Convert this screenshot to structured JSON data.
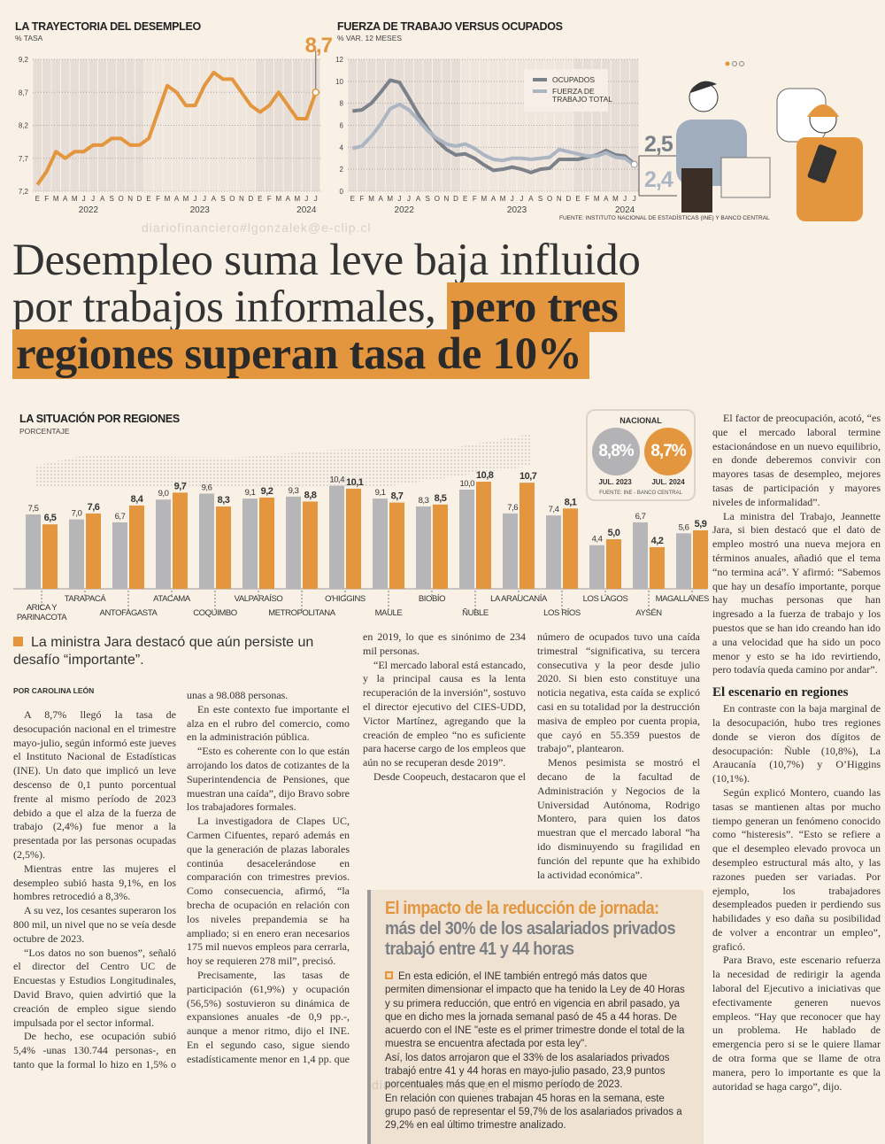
{
  "watermark": "diariofinanciero#lgonzalek@e-clip.cl",
  "chart_data": [
    {
      "type": "line",
      "title": "LA TRAYECTORIA DEL DESEMPLEO",
      "subtitle": "% TASA",
      "ylim": [
        7.2,
        9.2
      ],
      "yticks": [
        "7,2",
        "7,7",
        "8,2",
        "8,7",
        "9,2"
      ],
      "months": [
        "E",
        "F",
        "M",
        "A",
        "M",
        "J",
        "J",
        "A",
        "S",
        "O",
        "N",
        "D",
        "E",
        "F",
        "M",
        "A",
        "M",
        "J",
        "J",
        "A",
        "S",
        "O",
        "N",
        "D",
        "E",
        "F",
        "M",
        "A",
        "M",
        "J",
        "J"
      ],
      "years": [
        "2022",
        "2023",
        "2024"
      ],
      "series": [
        {
          "name": "Tasa de desocupación",
          "values": [
            7.3,
            7.5,
            7.8,
            7.7,
            7.8,
            7.8,
            7.9,
            7.9,
            8.0,
            8.0,
            7.9,
            7.9,
            8.0,
            8.4,
            8.8,
            8.7,
            8.5,
            8.5,
            8.8,
            9.0,
            8.9,
            8.9,
            8.7,
            8.5,
            8.4,
            8.5,
            8.7,
            8.5,
            8.3,
            8.3,
            8.7
          ]
        }
      ],
      "callout": "8,7",
      "color": "#e3963e"
    },
    {
      "type": "line",
      "title": "FUERZA DE TRABAJO VERSUS OCUPADOS",
      "subtitle": "% VAR. 12 MESES",
      "ylim": [
        0,
        12
      ],
      "yticks": [
        "0",
        "2",
        "4",
        "6",
        "8",
        "10",
        "12"
      ],
      "months": [
        "E",
        "F",
        "M",
        "A",
        "M",
        "J",
        "J",
        "A",
        "S",
        "O",
        "N",
        "D",
        "E",
        "F",
        "M",
        "A",
        "M",
        "J",
        "J",
        "A",
        "S",
        "O",
        "N",
        "D",
        "E",
        "F",
        "M",
        "A",
        "M",
        "J",
        "J"
      ],
      "years": [
        "2022",
        "2023",
        "2024"
      ],
      "series": [
        {
          "name": "OCUPADOS",
          "color": "#7b8189",
          "values": [
            7.3,
            7.4,
            8.0,
            9.0,
            10.1,
            9.9,
            8.5,
            7.0,
            5.7,
            4.6,
            3.8,
            3.3,
            3.4,
            3.0,
            2.4,
            1.9,
            2.0,
            2.2,
            2.0,
            1.7,
            2.0,
            2.1,
            2.9,
            2.9,
            2.9,
            3.1,
            3.3,
            3.7,
            3.3,
            3.2,
            2.5
          ],
          "end_label": "2,5"
        },
        {
          "name": "FUERZA DE TRABAJO TOTAL",
          "color": "#abb6c2",
          "values": [
            3.9,
            4.1,
            5.0,
            6.1,
            7.5,
            7.9,
            7.4,
            6.5,
            5.5,
            4.8,
            4.3,
            4.1,
            4.3,
            3.9,
            3.3,
            2.9,
            2.8,
            3.0,
            3.0,
            2.9,
            3.0,
            3.1,
            3.8,
            3.6,
            3.4,
            3.2,
            3.2,
            3.5,
            3.1,
            3.0,
            2.4
          ],
          "end_label": "2,4"
        }
      ],
      "source": "FUENTE: INSTITUTO NACIONAL DE ESTADÍSTICAS (INE) Y BANCO CENTRAL"
    },
    {
      "type": "bar",
      "title": "LA SITUACIÓN POR REGIONES",
      "subtitle": "PORCENTAJE",
      "categories": [
        "ARICA Y PARINACOTA",
        "TARAPACÁ",
        "ANTOFAGASTA",
        "ATACAMA",
        "COQUIMBO",
        "VALPARAÍSO",
        "METROPOLITANA",
        "O'HIGGINS",
        "MAULE",
        "BIOBÍO",
        "ÑUBLE",
        "LA ARAUCANÍA",
        "LOS RÍOS",
        "LOS LAGOS",
        "AYSÉN",
        "MAGALLANES"
      ],
      "series": [
        {
          "name": "JUL. 2023",
          "color": "#b6b6b8",
          "values": [
            7.5,
            7.0,
            6.7,
            9.0,
            9.6,
            9.1,
            9.3,
            10.4,
            9.1,
            8.3,
            10.0,
            7.6,
            7.4,
            4.4,
            6.7,
            5.6
          ],
          "labels": [
            "7,5",
            "7,0",
            "6,7",
            "9,0",
            "9,6",
            "9,1",
            "9,3",
            "10,4",
            "9,1",
            "8,3",
            "10,0",
            "7,6",
            "7,4",
            "4,4",
            "6,7",
            "5,6"
          ]
        },
        {
          "name": "JUL. 2024",
          "color": "#e3963e",
          "values": [
            6.5,
            7.6,
            8.4,
            9.7,
            8.3,
            9.2,
            8.8,
            10.1,
            8.7,
            8.5,
            10.8,
            10.7,
            8.1,
            5.0,
            4.2,
            5.9
          ],
          "labels": [
            "6,5",
            "7,6",
            "8,4",
            "9,7",
            "8,3",
            "9,2",
            "8,8",
            "10,1",
            "8,7",
            "8,5",
            "10,8",
            "10,7",
            "8,1",
            "5,0",
            "4,2",
            "5,9"
          ]
        }
      ],
      "national": {
        "title": "NACIONAL",
        "v2023": "8,8%",
        "l2023": "JUL. 2023",
        "v2024": "8,7%",
        "l2024": "JUL. 2024",
        "source": "FUENTE: INE - BANCO CENTRAL"
      }
    }
  ],
  "headline": {
    "plain": "Desempleo suma leve baja influido por trabajos informales, ",
    "highlight": "pero tres regiones superan tasa de 10%"
  },
  "pullquote": "La ministra Jara destacó que aún persiste un desafío “importante”.",
  "byline": "POR CAROLINA LEÓN",
  "body_main": [
    "A 8,7% llegó la tasa de desocupación nacional en el trimestre mayo-julio, según informó este jueves el Instituto Nacional de Estadísticas (INE). Un dato que implicó un leve descenso de 0,1 punto porcentual frente al mismo período de 2023 debido a que el alza de la fuerza de trabajo (2,4%) fue menor a la presentada por las personas ocupadas (2,5%).",
    "Mientras entre las mujeres el desempleo subió hasta 9,1%, en los hombres retrocedió a 8,3%.",
    "A su vez, los cesantes superaron los 800 mil, un nivel que no se veía desde octubre de 2023.",
    "“Los datos no son buenos”, señaló el director del Centro UC de Encuestas y Estudios Longitudinales, David Bravo, quien advirtió que la creación de empleo sigue siendo impulsada por el sector informal.",
    "De hecho, ese ocupación subió 5,4% -unas 130.744 personas-, en tanto que la formal lo hizo en 1,5% o unas a 98.088 personas.",
    "En este contexto fue importante el alza en el rubro del comercio, como en la administración pública.",
    "“Esto es coherente con lo que están arrojando los datos de cotizantes de la Superintendencia de Pensiones, que muestran una caída”, dijo Bravo sobre los trabajadores formales.",
    "La investigadora de Clapes UC, Carmen Cifuentes, reparó además en que la generación de plazas laborales continúa desacelerándose en comparación con trimestres previos. Como consecuencia, afirmó, “la brecha de ocupación en relación con los niveles prepandemia se ha ampliado; si en enero eran necesarios 175 mil nuevos empleos para cerrarla, hoy se requieren 278 mil”, precisó.",
    "Precisamente, las tasas de participación (61,9%) y ocupación (56,5%) sostuvieron su dinámica de expansiones anuales -de 0,9 pp.-, aunque a menor ritmo, dijo el INE. En el segundo caso, sigue siendo estadísticamente menor en 1,4 pp. que en 2019, lo que es sinónimo de 234 mil personas.",
    "“El mercado laboral está estancado, y la principal causa es la lenta recuperación de la inversión”, sostuvo el director ejecutivo del CIES-UDD, Victor Martínez, agregando que la creación de empleo “no es suficiente para hacerse cargo de los empleos que aún no se recuperan desde 2019”.",
    "Desde Coopeuch, destacaron que el número de ocupados tuvo una caída trimestral “significativa, su tercera consecutiva y la peor desde julio 2020. Si bien esto constituye una noticia negativa, esta caída se explicó casi en su totalidad por la destrucción masiva de empleo por cuenta propia, que cayó en 55.359 puestos de trabajo”, plantearon.",
    "Menos pesimista se mostró el decano de la facultad de Administración y Negocios de la Universidad Autónoma, Rodrigo Montero, para quien los datos muestran que el mercado laboral “ha ido disminuyendo su fragilidad en función del repunte que ha exhibido la actividad económica”."
  ],
  "body_right": [
    "El factor de preocupación, acotó, “es que el mercado laboral termine estacionándose en un nuevo equilibrio, en donde deberemos convivir con mayores tasas de desempleo, mejores tasas de participación y mayores niveles de informalidad”.",
    "La ministra del Trabajo, Jeannette Jara, si bien destacó que el dato de empleo mostró una nueva mejora en términos anuales, añadió que el tema “no termina acá”. Y afirmó: “Sabemos que hay un desafío importante, porque hay muchas personas que han ingresado a la fuerza de trabajo y los puestos que se han ido creando han ido a una velocidad que ha sido un poco menor y esto se ha ido revirtiendo, pero todavía queda camino por andar”."
  ],
  "subhead": "El escenario en regiones",
  "body_right2": [
    "En contraste con la baja marginal de la desocupación, hubo tres regiones donde se vieron dos dígitos de desocupación: Ñuble (10,8%), La Araucanía (10,7%) y O’Higgins (10,1%).",
    "Según explicó Montero, cuando las tasas se mantienen altas por mucho tiempo generan un fenómeno conocido como “histeresis”. “Esto se refiere a que el desempleo elevado provoca un desempleo estructural más alto, y las razones pueden ser variadas. Por ejemplo, los trabajadores desempleados pueden ir perdiendo sus habilidades y eso daña su posibilidad de volver a encontrar un empleo”, graficó.",
    "Para Bravo, este escenario refuerza la necesidad de redirigir la agenda laboral del Ejecutivo a iniciativas que efectivamente generen nuevos empleos. “Hay que reconocer que hay un problema. He hablado de emergencia pero si se le quiere llamar de otra forma que se llame de otra manera, pero lo importante es que la autoridad se haga cargo”, dijo."
  ],
  "box": {
    "title_orange": "El impacto de la reducción de jornada:",
    "title_gray": "más del 30% de los asalariados privados trabajó entre 41 y 44 horas",
    "paragraphs": [
      "En esta edición, el INE también entregó más datos que permiten dimensionar el impacto que ha tenido la Ley de 40 Horas y su primera reducción, que entró en vigencia en abril pasado, ya que en dicho mes la jornada semanal pasó de 45 a 44 horas. De acuerdo con el INE \"este es el primer trimestre donde el total de la muestra se encuentra afectada por esta ley\".",
      "Así, los datos arrojaron que el 33% de los asalariados privados trabajó entre 41 y 44 horas en mayo-julio pasado, 23,9 puntos porcentuales más que en el mismo período de 2023.",
      "En relación con quienes trabajan 45 horas en la semana, este grupo pasó de representar el 59,7% de los asalariados privados a 29,2% en eal último trimestre analizado."
    ]
  }
}
